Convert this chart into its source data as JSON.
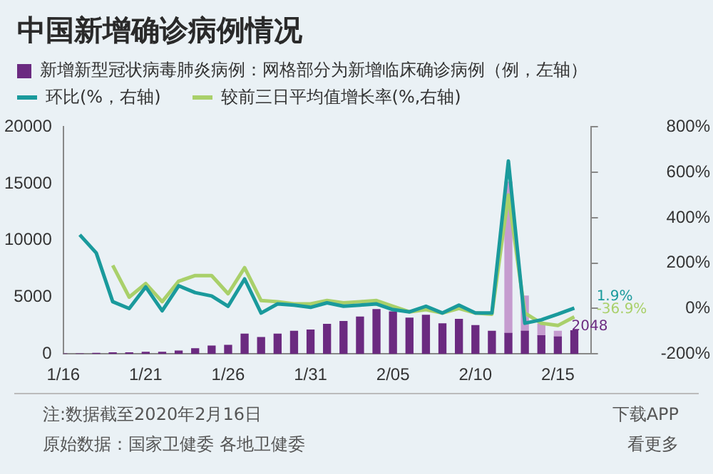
{
  "chart_data": {
    "type": "bar",
    "title": "中国新增确诊病例情况",
    "x": [
      "2020-01-16",
      "2020-01-17",
      "2020-01-18",
      "2020-01-19",
      "2020-01-20",
      "2020-01-21",
      "2020-01-22",
      "2020-01-23",
      "2020-01-24",
      "2020-01-25",
      "2020-01-26",
      "2020-01-27",
      "2020-01-28",
      "2020-01-29",
      "2020-01-30",
      "2020-01-31",
      "2020-02-01",
      "2020-02-02",
      "2020-02-03",
      "2020-02-04",
      "2020-02-05",
      "2020-02-06",
      "2020-02-07",
      "2020-02-08",
      "2020-02-09",
      "2020-02-10",
      "2020-02-11",
      "2020-02-12",
      "2020-02-13",
      "2020-02-14",
      "2020-02-15",
      "2020-02-16"
    ],
    "stacked": true,
    "series": [
      {
        "name": "新增新型冠状病毒肺炎病例：网格部分为新增临床确诊病例（例，左轴）",
        "color": "#6b2a80",
        "values": [
          0,
          0,
          50,
          100,
          100,
          150,
          150,
          250,
          450,
          700,
          750,
          1750,
          1450,
          1750,
          2000,
          2100,
          2600,
          2850,
          3250,
          3900,
          3700,
          3150,
          3400,
          2650,
          3050,
          2500,
          2000,
          1800,
          2000,
          1600,
          1500,
          2048
        ],
        "value_labels": [
          null,
          null,
          null,
          null,
          null,
          null,
          null,
          null,
          null,
          null,
          null,
          null,
          null,
          null,
          null,
          null,
          null,
          null,
          null,
          null,
          null,
          null,
          null,
          null,
          null,
          null,
          null,
          null,
          null,
          null,
          null,
          "2048"
        ]
      },
      {
        "color": "#c59ccf",
        "values": [
          null,
          null,
          null,
          null,
          null,
          null,
          null,
          null,
          null,
          null,
          null,
          null,
          null,
          null,
          null,
          null,
          null,
          null,
          null,
          null,
          null,
          null,
          null,
          null,
          null,
          null,
          null,
          13350,
          3100,
          1050,
          500,
          null
        ]
      },
      {
        "name": "环比(%，右轴)",
        "type": "line",
        "axis": "y2",
        "color": "#1a9a9c",
        "values": [
          null,
          325,
          245,
          30,
          0,
          95,
          -10,
          100,
          70,
          55,
          10,
          130,
          -20,
          20,
          15,
          5,
          25,
          10,
          15,
          20,
          -5,
          -15,
          10,
          -20,
          15,
          -20,
          -20,
          650,
          -65,
          -50,
          -25,
          1.9
        ],
        "value_labels": [
          null,
          null,
          null,
          null,
          null,
          null,
          null,
          null,
          null,
          null,
          null,
          null,
          null,
          null,
          null,
          null,
          null,
          null,
          null,
          null,
          null,
          null,
          null,
          null,
          null,
          null,
          null,
          null,
          null,
          null,
          null,
          "1.9%"
        ]
      },
      {
        "name": "较前三日平均值增长率(%,右轴)",
        "type": "line",
        "axis": "y2",
        "color": "#a9d06a",
        "values": [
          null,
          null,
          null,
          190,
          50,
          110,
          30,
          120,
          145,
          145,
          65,
          180,
          35,
          30,
          20,
          20,
          35,
          25,
          30,
          35,
          10,
          -15,
          -5,
          -20,
          0,
          -20,
          -25,
          500,
          -20,
          -65,
          -75,
          -36.9
        ],
        "value_labels": [
          null,
          null,
          null,
          null,
          null,
          null,
          null,
          null,
          null,
          null,
          null,
          null,
          null,
          null,
          null,
          null,
          null,
          null,
          null,
          null,
          null,
          null,
          null,
          null,
          null,
          null,
          null,
          null,
          null,
          null,
          null,
          "-36.9%"
        ]
      }
    ],
    "xlim": [
      "2020-01-16",
      "2020-02-17"
    ],
    "xticks": [
      {
        "value": "2020-01-16",
        "label": "1/16"
      },
      {
        "value": "2020-01-21",
        "label": "1/21"
      },
      {
        "value": "2020-01-26",
        "label": "1/26"
      },
      {
        "value": "2020-01-31",
        "label": "1/31"
      },
      {
        "value": "2020-02-05",
        "label": "2/05"
      },
      {
        "value": "2020-02-10",
        "label": "2/10"
      },
      {
        "value": "2020-02-15",
        "label": "2/15"
      }
    ],
    "ylim": [
      0,
      20000
    ],
    "yticks": [
      0,
      5000,
      10000,
      15000,
      20000
    ],
    "y2lim": [
      -200,
      800
    ],
    "y2ticks": [
      {
        "value": -200,
        "label": "-200%"
      },
      {
        "value": 0,
        "label": "0%"
      },
      {
        "value": 200,
        "label": "200%"
      },
      {
        "value": 400,
        "label": "400%"
      },
      {
        "value": 600,
        "label": "600%"
      },
      {
        "value": 800,
        "label": "800%"
      }
    ],
    "legend": "top left",
    "grid": false,
    "annotations": [
      "注:数据截至2020年2月16日",
      "下载APP",
      "原始数据：国家卫健委 各地卫健委",
      "看更多"
    ]
  }
}
